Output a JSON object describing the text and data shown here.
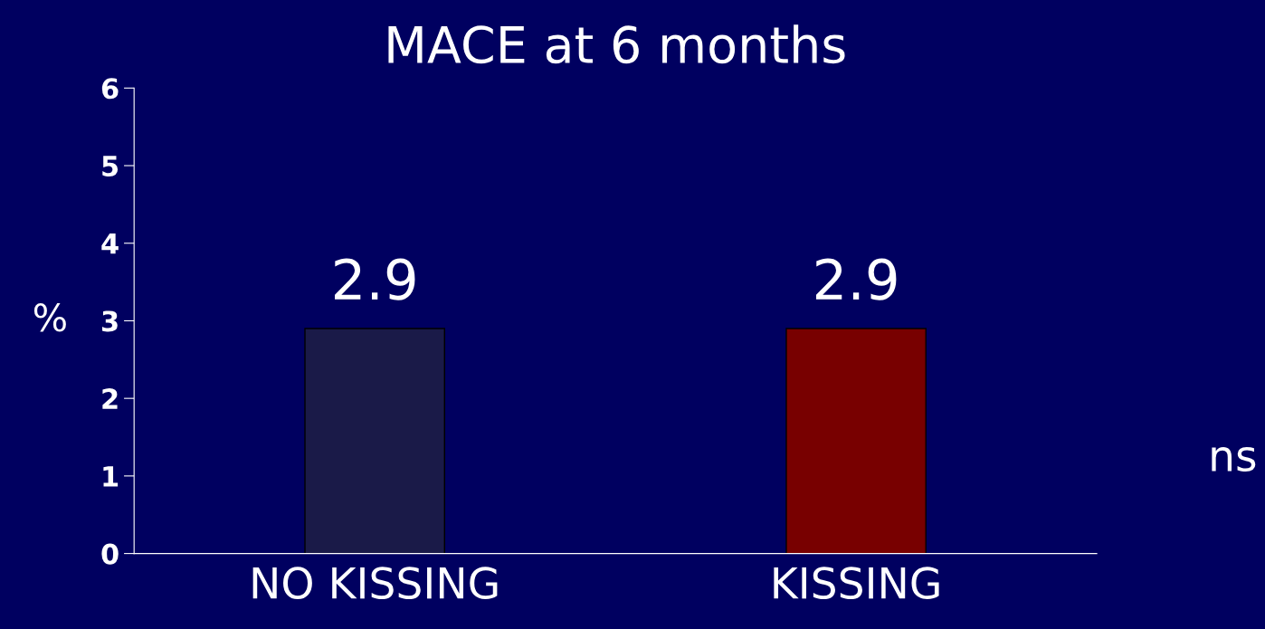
{
  "chart_data": {
    "type": "bar",
    "title": "MACE at 6 months",
    "ylabel": "%",
    "categories": [
      "NO KISSING",
      "KISSING"
    ],
    "values": [
      2.9,
      2.9
    ],
    "colors": [
      "#1a1a48",
      "#780000"
    ],
    "ylim": [
      0,
      6
    ],
    "yticks": [
      0,
      1,
      2,
      3,
      4,
      5,
      6
    ],
    "data_labels": true,
    "grid": false,
    "legend": false,
    "annotations": [
      "ns"
    ]
  }
}
